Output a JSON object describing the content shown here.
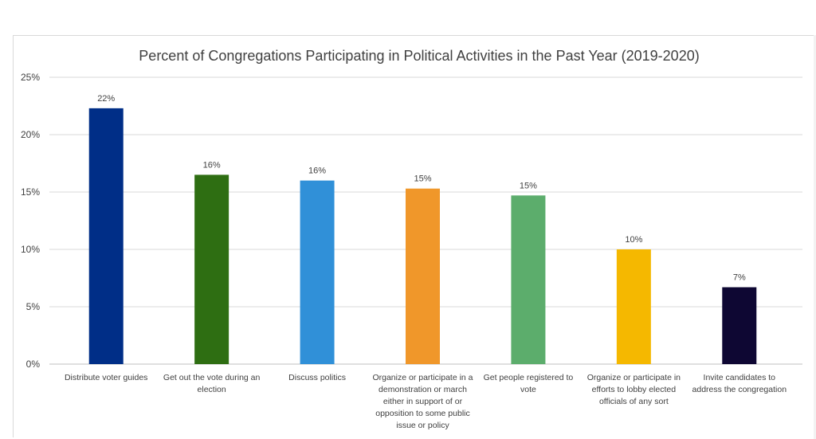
{
  "chart_data": {
    "type": "bar",
    "title": "Percent of Congregations Participating in Political Activities in the Past Year (2019-2020)",
    "categories": [
      [
        "Distribute voter guides"
      ],
      [
        "Get out the vote during an",
        "election"
      ],
      [
        "Discuss politics"
      ],
      [
        "Organize or participate in a",
        "demonstration or march",
        "either in support of or",
        "opposition to some public",
        "issue or policy"
      ],
      [
        "Get people registered to",
        "vote"
      ],
      [
        "Organize or participate in",
        "efforts to lobby elected",
        "officials of any sort"
      ],
      [
        "Invite candidates to",
        "address the congregation"
      ]
    ],
    "values": [
      22.3,
      16.5,
      16.0,
      15.3,
      14.7,
      10.0,
      6.7
    ],
    "data_labels": [
      "22%",
      "16%",
      "16%",
      "15%",
      "15%",
      "10%",
      "7%"
    ],
    "colors": [
      "#002e87",
      "#2e6e12",
      "#3090d8",
      "#f0972a",
      "#5cad6c",
      "#f5b800",
      "#0e0733"
    ],
    "ylim": [
      0,
      25
    ],
    "yticks": [
      0,
      5,
      10,
      15,
      20,
      25
    ],
    "ytick_labels": [
      "0%",
      "5%",
      "10%",
      "15%",
      "20%",
      "25%"
    ],
    "grid": true,
    "legend": "none"
  }
}
